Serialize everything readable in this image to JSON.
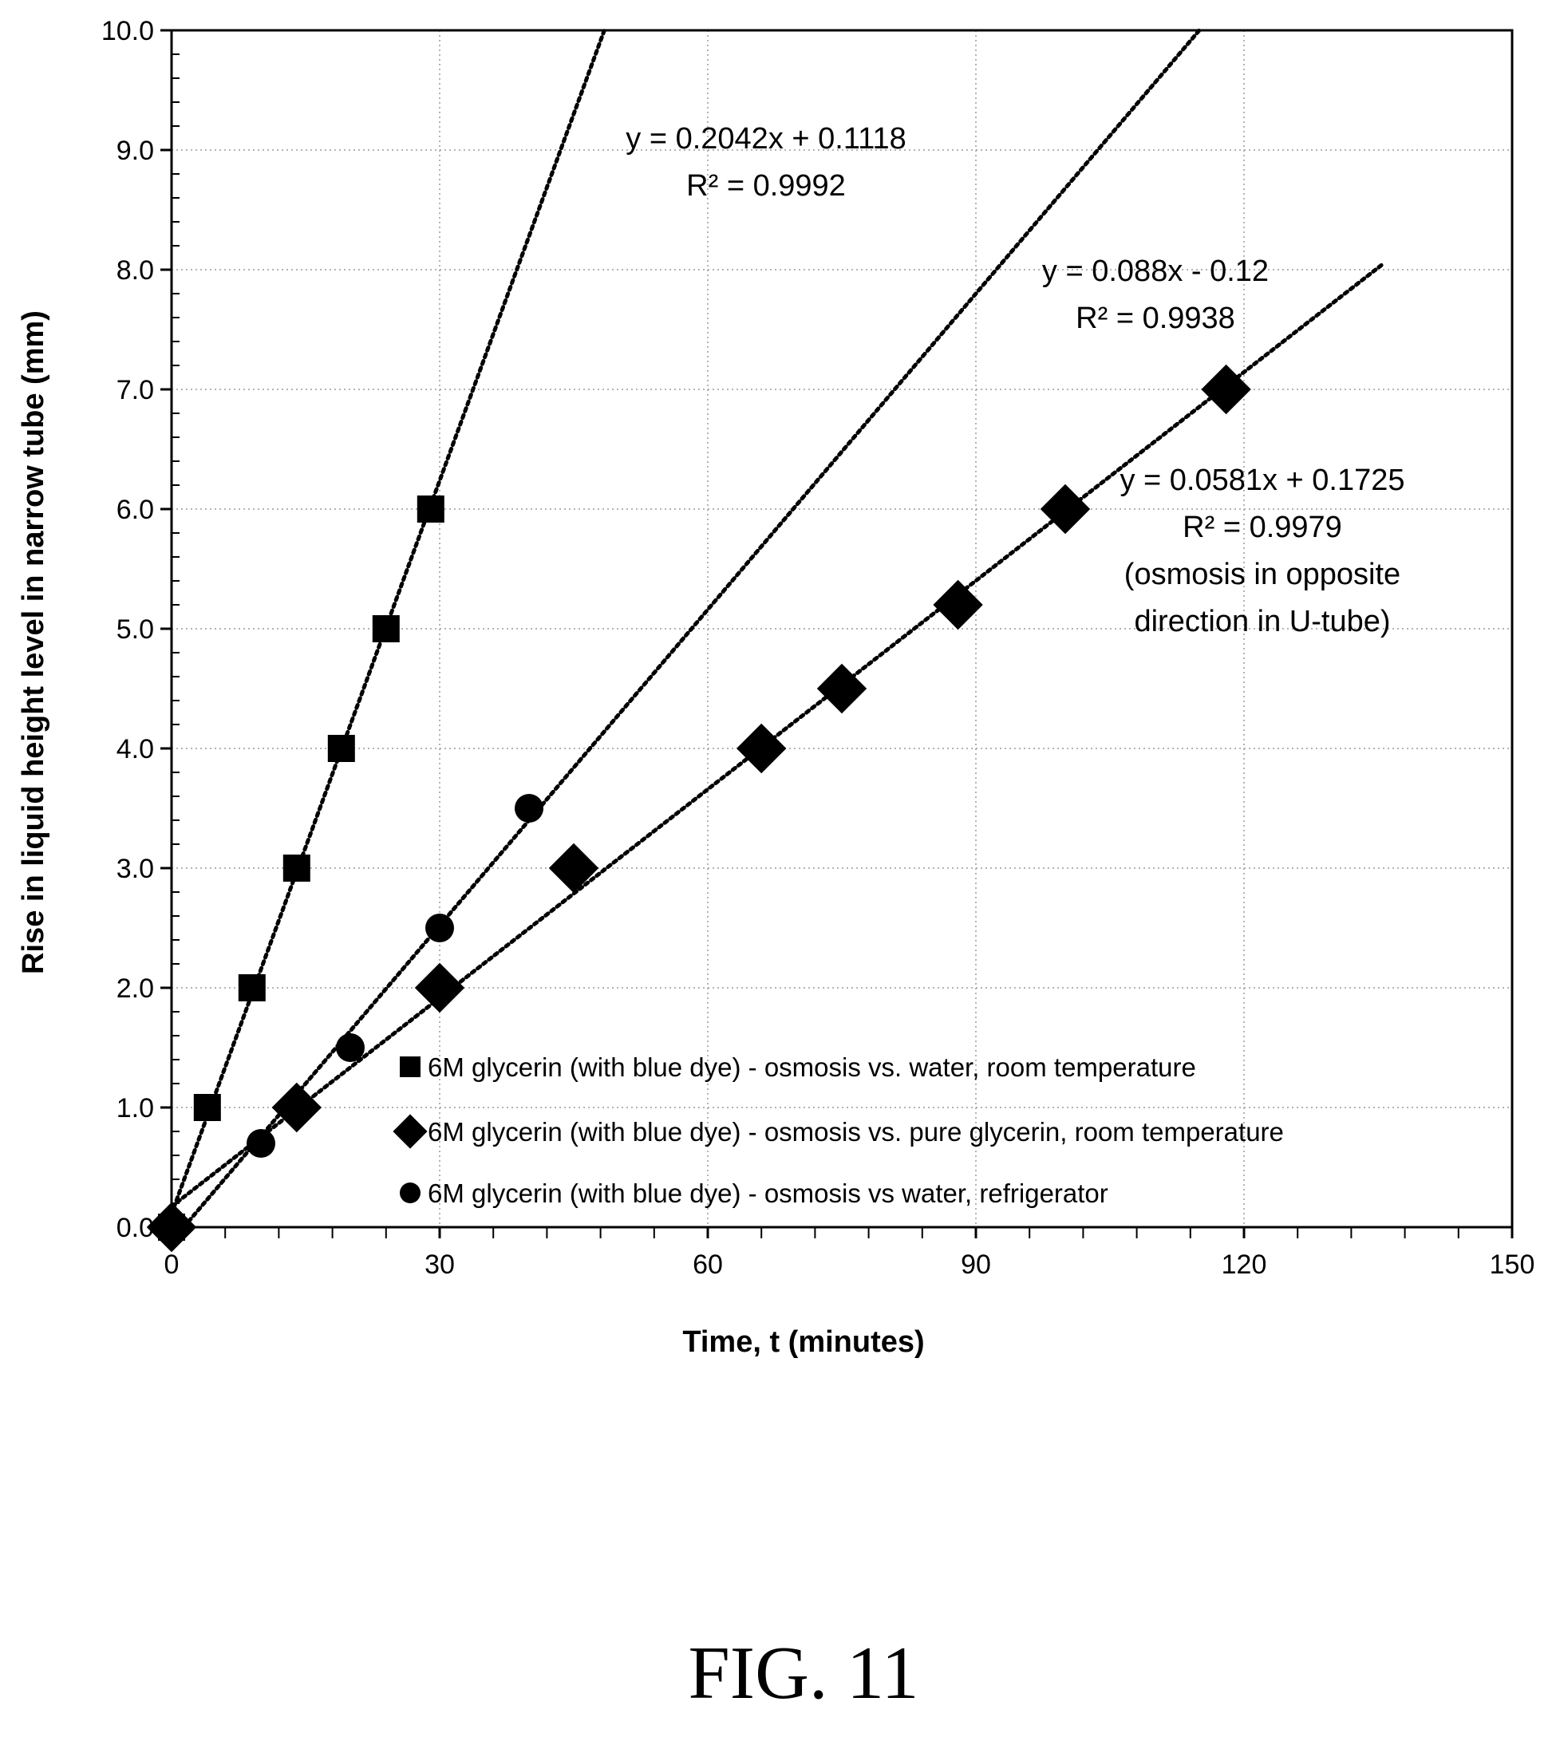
{
  "chart_data": {
    "type": "scatter",
    "xlabel": "Time, t (minutes)",
    "ylabel": "Rise in liquid height level in narrow tube (mm)",
    "xlim": [
      0,
      150
    ],
    "ylim": [
      0,
      10
    ],
    "xticks": [
      0,
      30,
      60,
      90,
      120,
      150
    ],
    "xtick_labels": [
      "0",
      "30",
      "60",
      "90",
      "120",
      "150"
    ],
    "yticks": [
      0,
      1,
      2,
      3,
      4,
      5,
      6,
      7,
      8,
      9,
      10
    ],
    "ytick_labels": [
      "0.0",
      "1.0",
      "2.0",
      "3.0",
      "4.0",
      "5.0",
      "6.0",
      "7.0",
      "8.0",
      "9.0",
      "10.0"
    ],
    "grid": true,
    "legend_position": "lower-middle",
    "series": [
      {
        "name": "6M glycerin (with blue dye) - osmosis vs. water, room temperature",
        "marker": "square",
        "x": [
          0,
          4,
          9,
          14,
          19,
          24,
          29
        ],
        "y": [
          0,
          1,
          2,
          3,
          4,
          5,
          6
        ],
        "trendline": {
          "slope": 0.2042,
          "intercept": 0.1118,
          "x_range": [
            0,
            48.4
          ]
        }
      },
      {
        "name": "6M glycerin (with blue dye) - osmosis vs. pure glycerin, room temperature",
        "marker": "diamond",
        "x": [
          0,
          14,
          30,
          45,
          66,
          75,
          88,
          100,
          118
        ],
        "y": [
          0,
          1,
          2,
          3,
          4,
          4.5,
          5.2,
          6,
          7
        ],
        "trendline": {
          "slope": 0.0581,
          "intercept": 0.1725,
          "x_range": [
            0,
            135.5
          ]
        }
      },
      {
        "name": "6M glycerin (with blue dye) - osmosis vs water, refrigerator",
        "marker": "circle",
        "x": [
          0,
          10,
          20,
          30,
          40
        ],
        "y": [
          0,
          0.7,
          1.5,
          2.5,
          3.5
        ],
        "trendline": {
          "slope": 0.088,
          "intercept": -0.12,
          "x_range": [
            1.4,
            115
          ]
        }
      }
    ],
    "annotations": [
      {
        "lines": [
          "y = 0.2042x + 0.1118",
          "R² = 0.9992"
        ]
      },
      {
        "lines": [
          "y = 0.088x - 0.12",
          "R² = 0.9938"
        ]
      },
      {
        "lines": [
          "y = 0.0581x + 0.1725",
          "R² = 0.9979",
          "(osmosis in opposite",
          "direction in U-tube)"
        ]
      }
    ]
  },
  "figure_label": "FIG. 11"
}
